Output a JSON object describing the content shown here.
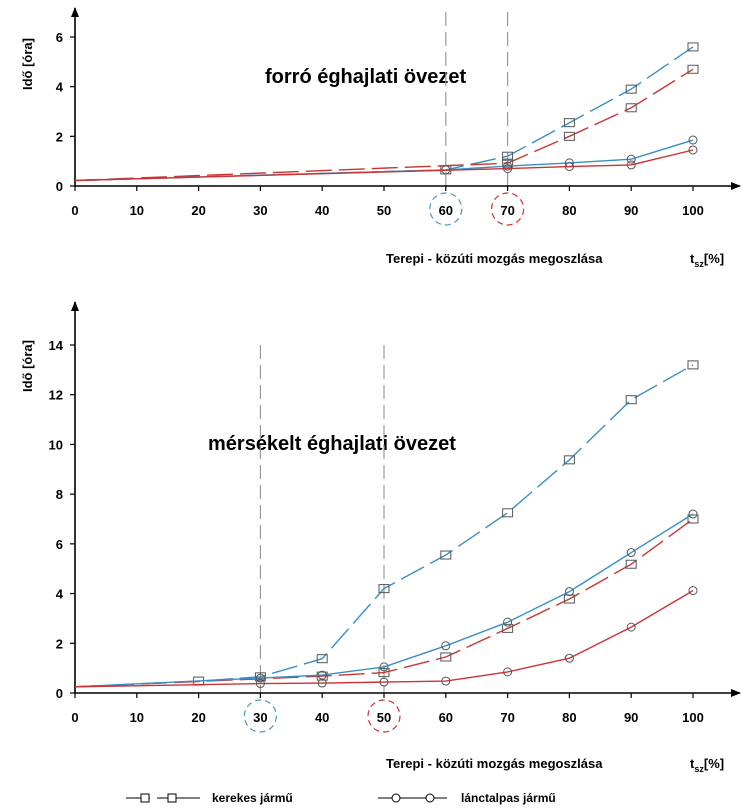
{
  "chart_data": [
    {
      "type": "line",
      "title": "forró éghajlati övezet",
      "xlabel": "Terepi - közúti mozgás megoszlása",
      "xunit_main": "t",
      "xunit_sub": "sz",
      "xunit_suffix": "[%]",
      "ylabel": "Idő [óra]",
      "xlim": [
        0,
        100
      ],
      "ylim": [
        0,
        6.5
      ],
      "xticks": [
        0,
        10,
        20,
        30,
        40,
        50,
        60,
        70,
        80,
        90,
        100
      ],
      "yticks": [
        0,
        2,
        4,
        6
      ],
      "reference_lines": [
        {
          "x": 60,
          "color": "#4a9ab8"
        },
        {
          "x": 70,
          "color": "#cc3333"
        }
      ],
      "series": [
        {
          "color": "#3a8fc4",
          "dash": "long",
          "marker": "square",
          "x": [
            0,
            60,
            70,
            80,
            90,
            100
          ],
          "y": [
            0.22,
            0.65,
            1.2,
            2.55,
            3.9,
            5.6
          ]
        },
        {
          "color": "#cc3333",
          "dash": "long",
          "marker": "square",
          "x": [
            0,
            70,
            80,
            90,
            100
          ],
          "y": [
            0.22,
            0.92,
            2.0,
            3.15,
            4.7
          ]
        },
        {
          "color": "#3a8fc4",
          "dash": "solid",
          "marker": "circle",
          "x": [
            0,
            60,
            70,
            80,
            90,
            100
          ],
          "y": [
            0.22,
            0.65,
            0.8,
            0.93,
            1.08,
            1.85
          ]
        },
        {
          "color": "#cc3333",
          "dash": "solid",
          "marker": "circle",
          "x": [
            0,
            70,
            80,
            90,
            100
          ],
          "y": [
            0.22,
            0.7,
            0.78,
            0.85,
            1.45
          ]
        }
      ]
    },
    {
      "type": "line",
      "title": "mérsékelt éghajlati övezet",
      "xlabel": "Terepi - közúti mozgás megoszlása",
      "xunit_main": "t",
      "xunit_sub": "sz",
      "xunit_suffix": "[%]",
      "ylabel": "Idő [óra]",
      "xlim": [
        0,
        100
      ],
      "ylim": [
        0,
        14.8
      ],
      "xticks": [
        0,
        10,
        20,
        30,
        40,
        50,
        60,
        70,
        80,
        90,
        100
      ],
      "yticks": [
        0,
        2,
        4,
        6,
        8,
        10,
        12,
        14
      ],
      "reference_lines": [
        {
          "x": 30,
          "color": "#4a9ab8"
        },
        {
          "x": 50,
          "color": "#cc3333"
        }
      ],
      "series": [
        {
          "color": "#3a8fc4",
          "dash": "long",
          "marker": "square",
          "x": [
            0,
            20,
            30,
            40,
            50,
            60,
            70,
            80,
            90,
            100
          ],
          "y": [
            0.25,
            0.48,
            0.65,
            1.38,
            4.2,
            5.55,
            7.25,
            9.38,
            11.8,
            13.2
          ]
        },
        {
          "color": "#cc3333",
          "dash": "long",
          "marker": "square",
          "x": [
            0,
            40,
            50,
            60,
            70,
            80,
            90,
            100
          ],
          "y": [
            0.25,
            0.68,
            0.82,
            1.45,
            2.6,
            3.78,
            5.18,
            7.0
          ]
        },
        {
          "color": "#3a8fc4",
          "dash": "solid",
          "marker": "circle",
          "x": [
            0,
            30,
            40,
            50,
            60,
            70,
            80,
            90,
            100
          ],
          "y": [
            0.25,
            0.6,
            0.72,
            1.05,
            1.9,
            2.85,
            4.08,
            5.65,
            7.2
          ]
        },
        {
          "color": "#cc3333",
          "dash": "solid",
          "marker": "circle",
          "x": [
            0,
            30,
            40,
            50,
            60,
            70,
            80,
            90,
            100
          ],
          "y": [
            0.25,
            0.38,
            0.4,
            0.44,
            0.48,
            0.85,
            1.4,
            2.65,
            4.12
          ]
        }
      ]
    }
  ],
  "legend": [
    {
      "label": "kerekes jármű",
      "marker": "square",
      "dash": "long"
    },
    {
      "label": "lánctalpas jármű",
      "marker": "circle",
      "dash": "solid"
    }
  ]
}
